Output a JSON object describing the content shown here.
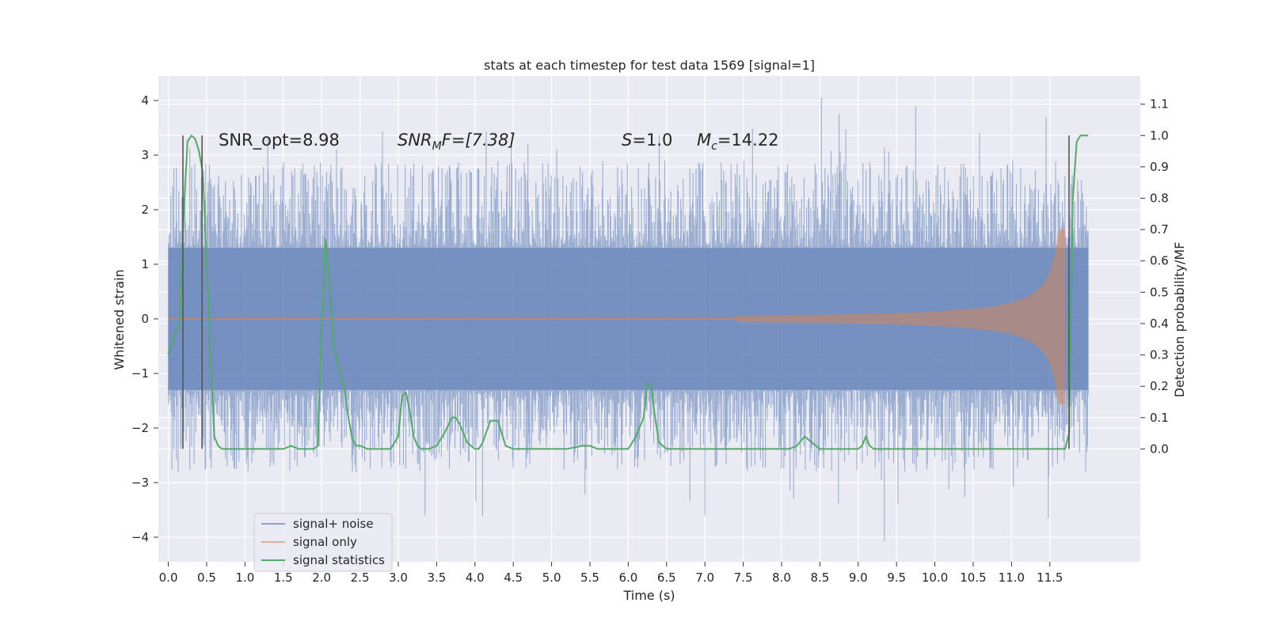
{
  "chart_data": {
    "type": "line",
    "title": "stats at each timestep for test data 1569 [signal=1]",
    "xlabel": "Time (s)",
    "ylabel": "Whitened strain",
    "ylabel_right": "Detection probability/MF",
    "xlim": [
      -0.13,
      12.68
    ],
    "ylim": [
      -4.45,
      4.45
    ],
    "ylim_right": [
      -0.36,
      1.19
    ],
    "x_ticks": [
      0.0,
      0.5,
      1.0,
      1.5,
      2.0,
      2.5,
      3.0,
      3.5,
      4.0,
      4.5,
      5.0,
      5.5,
      6.0,
      6.5,
      7.0,
      7.5,
      8.0,
      8.5,
      9.0,
      9.5,
      10.0,
      10.5,
      11.0,
      11.5
    ],
    "x_tick_labels": [
      "0.0",
      "0.5",
      "1.0",
      "1.5",
      "2.0",
      "2.5",
      "3.0",
      "3.5",
      "4.0",
      "4.5",
      "5.0",
      "5.5",
      "6.0",
      "6.5",
      "7.0",
      "7.5",
      "8.0",
      "8.5",
      "9.0",
      "9.5",
      "10.0",
      "10.5",
      "11.0",
      "11.5"
    ],
    "y_ticks": [
      -4,
      -3,
      -2,
      -1,
      0,
      1,
      2,
      3,
      4
    ],
    "y_tick_labels": [
      "−4",
      "−3",
      "−2",
      "−1",
      "0",
      "1",
      "2",
      "3",
      "4"
    ],
    "y_ticks_right": [
      0.0,
      0.1,
      0.2,
      0.3,
      0.4,
      0.5,
      0.6,
      0.7,
      0.8,
      0.9,
      1.0,
      1.1
    ],
    "y_tick_labels_right": [
      "0.0",
      "0.1",
      "0.2",
      "0.3",
      "0.4",
      "0.5",
      "0.6",
      "0.7",
      "0.8",
      "0.9",
      "1.0",
      "1.1"
    ],
    "grid": true,
    "legend_position": "lower-left",
    "annotations": {
      "snr_opt": "SNR_opt=8.98",
      "snr_mf_sym": "SNR",
      "snr_mf_sub": "M",
      "snr_mf_after": "F=[7.38]",
      "s_sym": "S",
      "s_val": "=1.0",
      "mc_sym": "M",
      "mc_sub": "c",
      "mc_val": "=14.22"
    },
    "series": [
      {
        "name": "signal+ noise",
        "color": "#4c72b0",
        "opacity": 0.5,
        "x_range": [
          0.0,
          12.0
        ],
        "typical_envelope": [
          -1.3,
          1.3
        ],
        "peak_max": 4.05,
        "peak_min": -4.07
      },
      {
        "name": "signal only",
        "color": "#dd8452",
        "opacity": 0.5,
        "chirp_start": 7.4,
        "chirp_end": 11.7,
        "peak_amplitude": 1.65
      },
      {
        "name": "signal statistics",
        "color": "#55a868",
        "x": [
          0.0,
          0.15,
          0.2,
          0.25,
          0.3,
          0.35,
          0.4,
          0.45,
          0.5,
          0.55,
          0.6,
          0.65,
          0.7,
          0.8,
          1.0,
          1.5,
          1.6,
          1.7,
          1.9,
          1.95,
          2.0,
          2.05,
          2.1,
          2.15,
          2.2,
          2.25,
          2.3,
          2.35,
          2.4,
          2.45,
          2.5,
          2.6,
          2.7,
          2.8,
          2.9,
          3.0,
          3.05,
          3.1,
          3.15,
          3.2,
          3.25,
          3.3,
          3.35,
          3.4,
          3.5,
          3.6,
          3.7,
          3.75,
          3.8,
          3.9,
          4.0,
          4.05,
          4.1,
          4.2,
          4.3,
          4.35,
          4.4,
          4.5,
          4.6,
          4.7,
          4.8,
          5.0,
          5.2,
          5.4,
          5.5,
          5.6,
          5.8,
          6.0,
          6.1,
          6.2,
          6.25,
          6.3,
          6.35,
          6.4,
          6.45,
          6.5,
          6.6,
          6.8,
          7.0,
          7.5,
          8.0,
          8.1,
          8.2,
          8.3,
          8.4,
          8.5,
          8.6,
          8.8,
          9.0,
          9.05,
          9.1,
          9.15,
          9.2,
          9.5,
          9.8,
          9.9,
          10.0,
          10.5,
          11.0,
          11.5,
          11.7,
          11.75,
          11.8,
          11.85,
          11.9,
          12.0
        ],
        "y": [
          0.3,
          0.41,
          0.75,
          0.98,
          1.0,
          0.99,
          0.95,
          0.88,
          0.6,
          0.3,
          0.04,
          0.01,
          0.0,
          0.0,
          0.0,
          0.0,
          0.01,
          0.0,
          0.0,
          0.01,
          0.4,
          0.67,
          0.55,
          0.35,
          0.28,
          0.24,
          0.19,
          0.1,
          0.03,
          0.01,
          0.01,
          0.0,
          0.0,
          0.0,
          0.0,
          0.04,
          0.17,
          0.18,
          0.12,
          0.04,
          0.01,
          0.0,
          0.0,
          0.0,
          0.01,
          0.05,
          0.1,
          0.1,
          0.08,
          0.02,
          0.0,
          0.0,
          0.02,
          0.09,
          0.09,
          0.05,
          0.01,
          0.0,
          0.0,
          0.0,
          0.0,
          0.0,
          0.0,
          0.01,
          0.01,
          0.0,
          0.0,
          0.0,
          0.04,
          0.1,
          0.21,
          0.2,
          0.1,
          0.02,
          0.01,
          0.0,
          0.0,
          0.0,
          0.0,
          0.0,
          0.0,
          0.0,
          0.01,
          0.04,
          0.02,
          0.0,
          0.0,
          0.0,
          0.0,
          0.01,
          0.04,
          0.01,
          0.0,
          0.0,
          0.0,
          0.0,
          0.0,
          0.0,
          0.0,
          0.0,
          0.0,
          0.05,
          0.8,
          0.98,
          1.0,
          1.0
        ]
      }
    ],
    "vertical_markers": {
      "color": "#555555",
      "x": [
        0.19,
        0.44,
        11.75
      ],
      "y_range_right": [
        0.0,
        1.0
      ]
    }
  }
}
